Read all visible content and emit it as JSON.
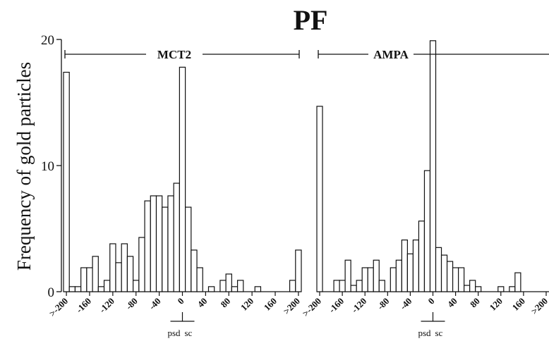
{
  "chart_data": {
    "type": "bar",
    "title": "PF",
    "ylabel": "Frequency of gold particles",
    "ylim": [
      0,
      20
    ],
    "yticks": [
      "0",
      "10",
      "20"
    ],
    "panels": [
      {
        "label": "MCT2",
        "xtick_labels": [
          ">-200",
          "-160",
          "-120",
          "-80",
          "-40",
          "0",
          "40",
          "80",
          "120",
          "160",
          ">200"
        ],
        "bins": [
          ">-200",
          "-190",
          "-180",
          "-170",
          "-160",
          "-150",
          "-140",
          "-130",
          "-120",
          "-110",
          "-100",
          "-90",
          "-80",
          "-70",
          "-60",
          "-50",
          "-40",
          "-30",
          "-20",
          "-10",
          "0",
          "10",
          "20",
          "30",
          "40",
          "50",
          "60",
          "70",
          "80",
          "90",
          "100",
          "110",
          "120",
          "130",
          "140",
          "150",
          "160",
          "170",
          "180",
          "190",
          ">200"
        ],
        "values": [
          17.4,
          0.4,
          0.4,
          1.9,
          1.9,
          2.8,
          0.4,
          0.9,
          3.8,
          2.3,
          3.8,
          2.8,
          0.9,
          4.3,
          7.2,
          7.6,
          7.6,
          6.7,
          7.6,
          8.6,
          17.8,
          6.7,
          3.3,
          1.9,
          0,
          0.4,
          0,
          0.9,
          1.4,
          0.4,
          0.9,
          0,
          0,
          0.4,
          0,
          0,
          0,
          0,
          0,
          0.9,
          3.3
        ],
        "marker": {
          "left": "psd",
          "right": "sc"
        }
      },
      {
        "label": "AMPA",
        "xtick_labels": [
          ">-200",
          "-160",
          "-120",
          "-80",
          "-40",
          "0",
          "40",
          "80",
          "120",
          "160",
          ">200"
        ],
        "bins": [
          ">-200",
          "-190",
          "-180",
          "-170",
          "-160",
          "-150",
          "-140",
          "-130",
          "-120",
          "-110",
          "-100",
          "-90",
          "-80",
          "-70",
          "-60",
          "-50",
          "-40",
          "-30",
          "-20",
          "-10",
          "0",
          "10",
          "20",
          "30",
          "40",
          "50",
          "60",
          "70",
          "80",
          "90",
          "100",
          "110",
          "120",
          "130",
          "140",
          "150",
          "160",
          "170",
          "180",
          "190",
          ">200"
        ],
        "values": [
          14.7,
          0,
          0,
          0.9,
          0.9,
          2.5,
          0.5,
          0.9,
          1.9,
          1.9,
          2.5,
          0.9,
          0,
          1.9,
          2.5,
          4.1,
          3.0,
          4.1,
          5.6,
          9.6,
          19.9,
          3.5,
          2.9,
          2.4,
          1.9,
          1.9,
          0.5,
          0.9,
          0.4,
          0,
          0,
          0,
          0.4,
          0,
          0.4,
          1.5,
          0,
          0,
          0,
          0,
          0
        ],
        "marker": {
          "left": "psd",
          "right": "sc"
        }
      }
    ]
  }
}
